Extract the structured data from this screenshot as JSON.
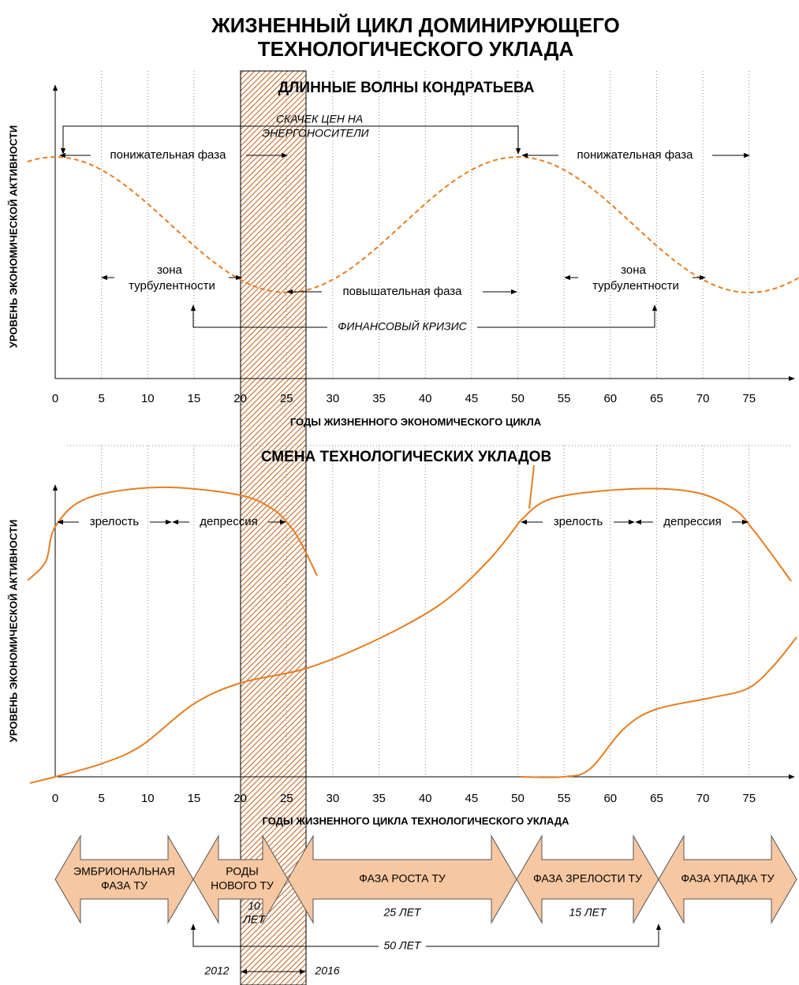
{
  "title": {
    "line1": "ЖИЗНЕННЫЙ ЦИКЛ ДОМИНИРУЮЩЕГО",
    "line2": "ТЕХНОЛОГИЧЕСКОГО УКЛАДА"
  },
  "kondratiev": {
    "subtitle": "ДЛИННЫЕ ВОЛНЫ КОНДРАТЬЕВА",
    "y_label": "УРОВЕНЬ ЭКОНОМИЧЕСКОЙ АКТИВНОСТИ",
    "x_label": "ГОДЫ ЖИЗНЕННОГО ЭКОНОМИЧЕСКОГО ЦИКЛА",
    "x_ticks": [
      0,
      5,
      10,
      15,
      20,
      25,
      30,
      35,
      40,
      45,
      50,
      55,
      60,
      65,
      70,
      75
    ],
    "annotations": {
      "price_jump": [
        "СКАЧЕК ЦЕН НА",
        "ЭНЕРГОНОСИТЕЛИ"
      ],
      "downward_1": "понижательная фаза",
      "downward_2": "понижательная фаза",
      "upward": "повышательная фаза",
      "turbulence_1": [
        "зона",
        "турбулентности"
      ],
      "turbulence_2": [
        "зона",
        "турбулентности"
      ],
      "crisis": "ФИНАНСОВЫЙ КРИЗИС"
    }
  },
  "technology": {
    "subtitle": "СМЕНА ТЕХНОЛОГИЧЕСКИХ УКЛАДОВ",
    "y_label": "УРОВЕНЬ ЭКОНОМИЧЕСКОЙ АКТИВНОСТИ",
    "x_label": "ГОДЫ ЖИЗНЕННОГО ЦИКЛА ТЕХНОЛОГИЧЕСКОГО УКЛАДА",
    "x_ticks": [
      0,
      5,
      10,
      15,
      20,
      25,
      30,
      35,
      40,
      45,
      50,
      55,
      60,
      65,
      70,
      75
    ],
    "annotations": {
      "maturity_1": "зрелость",
      "depression_1": "депрессия",
      "maturity_2": "зрелость",
      "depression_2": "депрессия"
    }
  },
  "phases": [
    {
      "label": [
        "ЭМБРИОНАЛЬНАЯ",
        "ФАЗА ТУ"
      ]
    },
    {
      "label": [
        "РОДЫ",
        "НОВОГО ТУ"
      ],
      "duration": [
        "10",
        "ЛЕТ"
      ]
    },
    {
      "label": [
        "ФАЗА РОСТА ТУ"
      ],
      "duration": [
        "25 ЛЕТ"
      ]
    },
    {
      "label": [
        "ФАЗА ЗРЕЛОСТИ ТУ"
      ],
      "duration": [
        "15 ЛЕТ"
      ]
    },
    {
      "label": [
        "ФАЗА УПАДКА ТУ"
      ]
    }
  ],
  "total": "50 ЛЕТ",
  "years": {
    "start": "2012",
    "end": "2016"
  }
}
